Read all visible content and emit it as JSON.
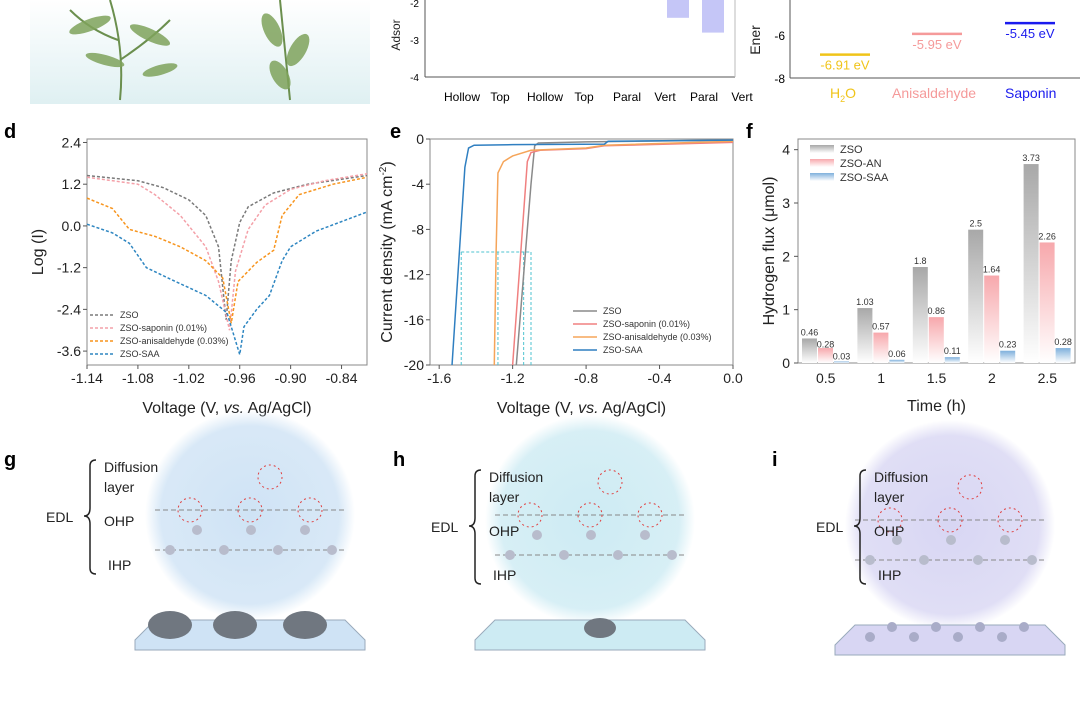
{
  "panels": {
    "d": "d",
    "e": "e",
    "f": "f",
    "g": "g",
    "h": "h",
    "i": "i"
  },
  "top_middle": {
    "ylabel_fragment": "Adsor",
    "yticks": [
      "-2",
      "-3",
      "-4"
    ],
    "xlabels": [
      "Hollow",
      "Top",
      "Hollow",
      "Top",
      "Paral",
      "Vert",
      "Paral",
      "Vert"
    ],
    "bars": [
      {
        "category": "Paral",
        "value": -2.4
      },
      {
        "category": "Vert",
        "value": -2.8
      }
    ],
    "bar_color": "#c5c6f7"
  },
  "top_right": {
    "ylabel_fragment": "Ener",
    "yticks": [
      "-6",
      "-8"
    ],
    "levels": [
      {
        "name": "H2O",
        "label": "-6.91 eV",
        "value": -6.91,
        "color": "#f0c419"
      },
      {
        "name": "Anisaldehyde",
        "label": "-5.95 eV",
        "value": -5.95,
        "color": "#f59a9a"
      },
      {
        "name": "Saponin",
        "label": "-5.45 eV",
        "value": -5.45,
        "color": "#1a1aee"
      }
    ],
    "xlabels": {
      "h2o_main": "H",
      "h2o_sub": "2",
      "h2o_end": "O",
      "anis": "Anisaldehyde",
      "sap": "Saponin"
    }
  },
  "chart_data": [
    {
      "panel": "d",
      "type": "line",
      "xlabel_pre": "Voltage (V, ",
      "xlabel_it": "vs.",
      "xlabel_post": " Ag/AgCl)",
      "ylabel": "Log (I)",
      "xlim": [
        -1.14,
        -0.81
      ],
      "ylim": [
        -4.0,
        2.5
      ],
      "xticks": [
        "-1.14",
        "-1.08",
        "-1.02",
        "-0.96",
        "-0.90",
        "-0.84"
      ],
      "xtick_vals": [
        -1.14,
        -1.08,
        -1.02,
        -0.96,
        -0.9,
        -0.84
      ],
      "yticks": [
        "2.4",
        "1.2",
        "0.0",
        "-1.2",
        "-2.4",
        "-3.6"
      ],
      "ytick_vals": [
        2.4,
        1.2,
        0,
        -1.2,
        -2.4,
        -3.6
      ],
      "legend": "bottom-left",
      "style": "dashed",
      "series": [
        {
          "name": "ZSO",
          "color": "#7a7a7a",
          "points": [
            [
              -1.14,
              1.45
            ],
            [
              -1.08,
              1.3
            ],
            [
              -1.05,
              1.1
            ],
            [
              -1.02,
              0.75
            ],
            [
              -1.0,
              0.3
            ],
            [
              -0.985,
              -0.6
            ],
            [
              -0.976,
              -2.7
            ],
            [
              -0.97,
              -1.0
            ],
            [
              -0.96,
              0.1
            ],
            [
              -0.95,
              0.55
            ],
            [
              -0.92,
              0.95
            ],
            [
              -0.88,
              1.2
            ],
            [
              -0.81,
              1.45
            ]
          ]
        },
        {
          "name": "ZSO-saponin (0.01%)",
          "color": "#f4a0a8",
          "points": [
            [
              -1.14,
              1.4
            ],
            [
              -1.08,
              1.2
            ],
            [
              -1.06,
              0.9
            ],
            [
              -1.03,
              0.3
            ],
            [
              -1.0,
              -0.6
            ],
            [
              -0.985,
              -1.6
            ],
            [
              -0.972,
              -3.0
            ],
            [
              -0.965,
              -1.3
            ],
            [
              -0.95,
              -0.1
            ],
            [
              -0.93,
              0.6
            ],
            [
              -0.9,
              1.05
            ],
            [
              -0.86,
              1.3
            ],
            [
              -0.81,
              1.5
            ]
          ]
        },
        {
          "name": "ZSO-anisaldehyde (0.03%)",
          "color": "#f7941d",
          "points": [
            [
              -1.14,
              0.8
            ],
            [
              -1.11,
              0.5
            ],
            [
              -1.09,
              -0.1
            ],
            [
              -1.06,
              -0.3
            ],
            [
              -1.03,
              -0.6
            ],
            [
              -1.0,
              -1.0
            ],
            [
              -0.98,
              -1.5
            ],
            [
              -0.97,
              -2.8
            ],
            [
              -0.962,
              -1.6
            ],
            [
              -0.94,
              -1.05
            ],
            [
              -0.92,
              -0.7
            ],
            [
              -0.91,
              0.3
            ],
            [
              -0.89,
              0.9
            ],
            [
              -0.85,
              1.2
            ],
            [
              -0.81,
              1.4
            ]
          ]
        },
        {
          "name": "ZSO-SAA",
          "color": "#2e86c1",
          "points": [
            [
              -1.14,
              0.05
            ],
            [
              -1.11,
              -0.2
            ],
            [
              -1.09,
              -0.5
            ],
            [
              -1.07,
              -1.2
            ],
            [
              -1.04,
              -1.55
            ],
            [
              -1.0,
              -2.0
            ],
            [
              -0.975,
              -2.5
            ],
            [
              -0.96,
              -3.7
            ],
            [
              -0.955,
              -2.9
            ],
            [
              -0.94,
              -2.4
            ],
            [
              -0.925,
              -2.0
            ],
            [
              -0.91,
              -1.0
            ],
            [
              -0.9,
              -0.6
            ],
            [
              -0.87,
              -0.15
            ],
            [
              -0.81,
              0.4
            ]
          ]
        }
      ]
    },
    {
      "panel": "e",
      "type": "line",
      "xlabel_pre": "Voltage (V, ",
      "xlabel_it": "vs.",
      "xlabel_post": " Ag/AgCl)",
      "ylabel": "Current density (mA cm",
      "ylabel_sup": "-2",
      "ylabel_end": ")",
      "xlim": [
        -1.65,
        0
      ],
      "ylim": [
        -20,
        0
      ],
      "xticks": [
        "-1.6",
        "-1.2",
        "-0.8",
        "-0.4",
        "0.0"
      ],
      "xtick_vals": [
        -1.6,
        -1.2,
        -0.8,
        -0.4,
        0
      ],
      "yticks": [
        "0",
        "-4",
        "-8",
        "-12",
        "-16",
        "-20"
      ],
      "ytick_vals": [
        0,
        -4,
        -8,
        -12,
        -16,
        -20
      ],
      "legend": "bottom-right",
      "style": "solid",
      "reference": {
        "y": -10,
        "x": [
          -1.48,
          -1.28,
          -1.14,
          -1.1
        ],
        "color": "#4fc3d0"
      },
      "series": [
        {
          "name": "ZSO",
          "color": "#8a8a8a",
          "points": [
            [
              -1.18,
              -20
            ],
            [
              -1.14,
              -12
            ],
            [
              -1.1,
              -4
            ],
            [
              -1.08,
              -0.6
            ],
            [
              -1.06,
              -0.35
            ],
            [
              -0.8,
              -0.25
            ],
            [
              0,
              -0.1
            ]
          ]
        },
        {
          "name": "ZSO-saponin (0.01%)",
          "color": "#f08080",
          "points": [
            [
              -1.2,
              -20
            ],
            [
              -1.16,
              -11
            ],
            [
              -1.12,
              -2
            ],
            [
              -1.1,
              -1.2
            ],
            [
              -1.05,
              -1.0
            ],
            [
              -0.8,
              -0.85
            ],
            [
              -0.7,
              -0.6
            ],
            [
              0,
              -0.3
            ]
          ]
        },
        {
          "name": "ZSO-anisaldehyde (0.03%)",
          "color": "#f5a55a",
          "points": [
            [
              -1.3,
              -20
            ],
            [
              -1.29,
              -10
            ],
            [
              -1.28,
              -3
            ],
            [
              -1.25,
              -2
            ],
            [
              -1.2,
              -1.5
            ],
            [
              -1.1,
              -1.0
            ],
            [
              -0.8,
              -0.8
            ],
            [
              -0.7,
              -0.55
            ],
            [
              0,
              -0.2
            ]
          ]
        },
        {
          "name": "ZSO-SAA",
          "color": "#2f7fc1",
          "points": [
            [
              -1.53,
              -20
            ],
            [
              -1.49,
              -10
            ],
            [
              -1.46,
              -2.5
            ],
            [
              -1.44,
              -0.8
            ],
            [
              -1.41,
              -0.55
            ],
            [
              -1.2,
              -0.5
            ],
            [
              -0.7,
              -0.45
            ],
            [
              -0.68,
              -0.2
            ],
            [
              0,
              -0.1
            ]
          ]
        }
      ]
    },
    {
      "panel": "f",
      "type": "bar",
      "xlabel": "Time (h)",
      "ylabel": "Hydrogen flux (μmol)",
      "ylim": [
        0,
        4.2
      ],
      "yticks": [
        "0",
        "1",
        "2",
        "3",
        "4"
      ],
      "ytick_vals": [
        0,
        1,
        2,
        3,
        4
      ],
      "categories": [
        "0.5",
        "1",
        "1.5",
        "2",
        "2.5"
      ],
      "legend": "top-left",
      "series": [
        {
          "name": "ZSO",
          "color": "#a8a8a8",
          "values": [
            0.46,
            1.03,
            1.8,
            2.5,
            3.73
          ],
          "labels": [
            "0.46",
            "1.03",
            "1.8",
            "2.5",
            "3.73"
          ]
        },
        {
          "name": "ZSO-AN",
          "color": "#f7a8ac",
          "values": [
            0.28,
            0.57,
            0.86,
            1.64,
            2.26
          ],
          "labels": [
            "0.28",
            "0.57",
            "0.86",
            "1.64",
            "2.26"
          ]
        },
        {
          "name": "ZSO-SAA",
          "color": "#7fb0dc",
          "values": [
            0.03,
            0.06,
            0.11,
            0.23,
            0.28
          ],
          "labels": [
            "0.03",
            "0.06",
            "0.11",
            "0.23",
            "0.28"
          ]
        }
      ]
    }
  ],
  "schematics": [
    {
      "panel": "g",
      "edl": "EDL",
      "diffusion": "Diffusion",
      "layer": "layer",
      "ohp": "OHP",
      "ihp": "IHP",
      "tint": "#cfe3f5"
    },
    {
      "panel": "h",
      "edl": "EDL",
      "diffusion": "Diffusion",
      "layer": "layer",
      "ohp": "OHP",
      "ihp": "IHP",
      "tint": "#cdebf3"
    },
    {
      "panel": "i",
      "edl": "EDL",
      "diffusion": "Diffusion",
      "layer": "layer",
      "ohp": "OHP",
      "ihp": "IHP",
      "tint": "#d8d6f3"
    }
  ]
}
